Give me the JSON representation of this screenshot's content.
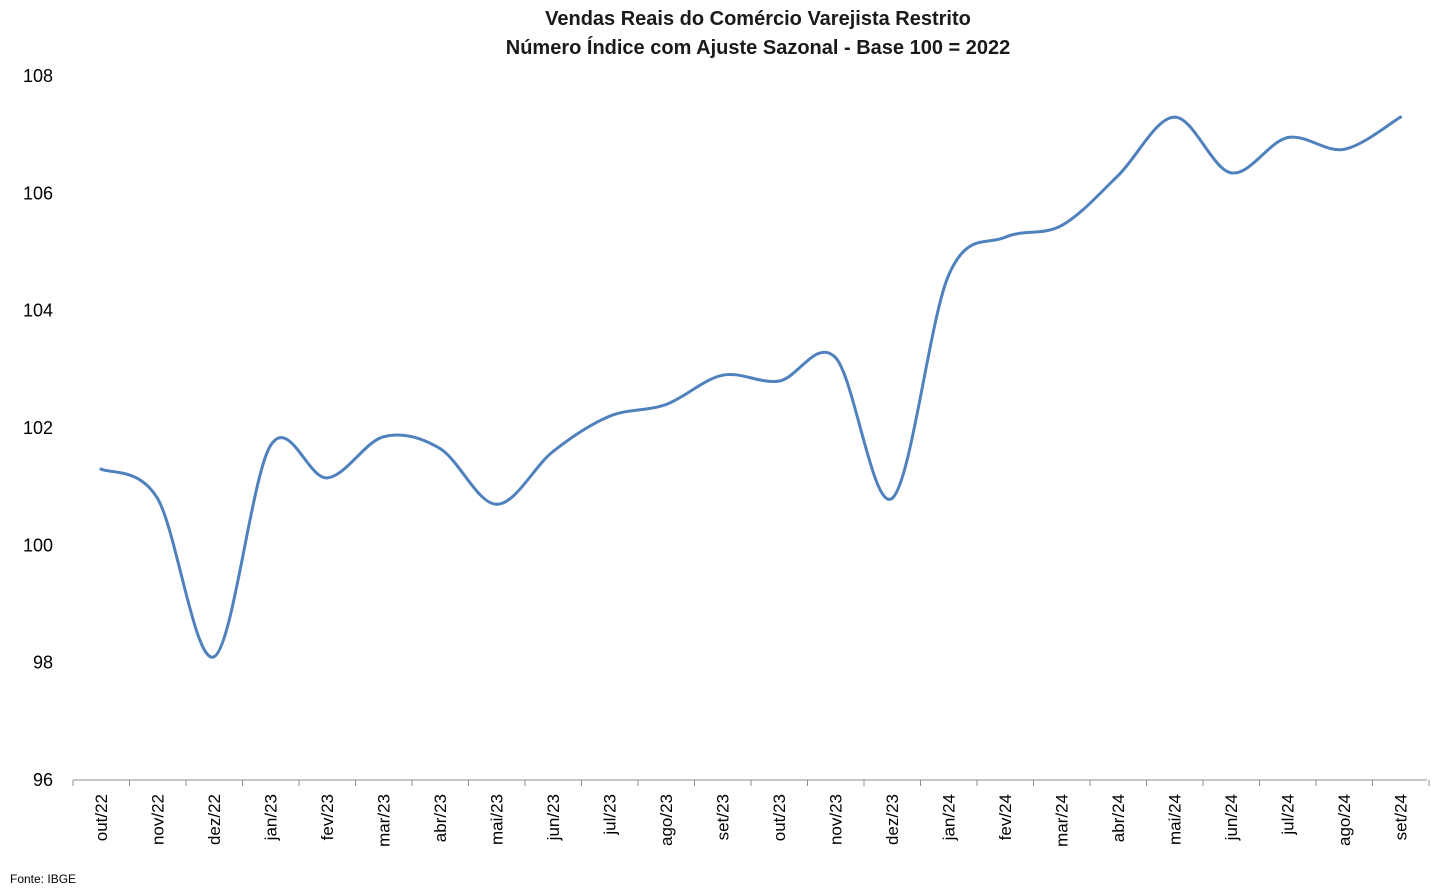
{
  "chart_data": {
    "type": "line",
    "title": "Vendas Reais do Comércio Varejista Restrito",
    "subtitle": "Número Índice com Ajuste Sazonal - Base 100 = 2022",
    "categories": [
      "out/22",
      "nov/22",
      "dez/22",
      "jan/23",
      "fev/23",
      "mar/23",
      "abr/23",
      "mai/23",
      "jun/23",
      "jul/23",
      "ago/23",
      "set/23",
      "out/23",
      "nov/23",
      "dez/23",
      "jan/24",
      "fev/24",
      "mar/24",
      "abr/24",
      "mai/24",
      "jun/24",
      "jul/24",
      "ago/24",
      "set/24"
    ],
    "series": [
      {
        "values": [
          101.3,
          100.8,
          98.1,
          101.7,
          101.15,
          101.85,
          101.65,
          100.7,
          101.6,
          102.2,
          102.4,
          102.9,
          102.8,
          103.2,
          100.8,
          104.6,
          105.25,
          105.45,
          106.3,
          107.3,
          106.35,
          106.95,
          106.75,
          107.3
        ],
        "color": "#4f81bd"
      }
    ],
    "ylim": [
      96,
      108
    ],
    "yticks": [
      96,
      98,
      100,
      102,
      104,
      106,
      108
    ],
    "grid": false,
    "source": "Fonte: IBGE"
  }
}
